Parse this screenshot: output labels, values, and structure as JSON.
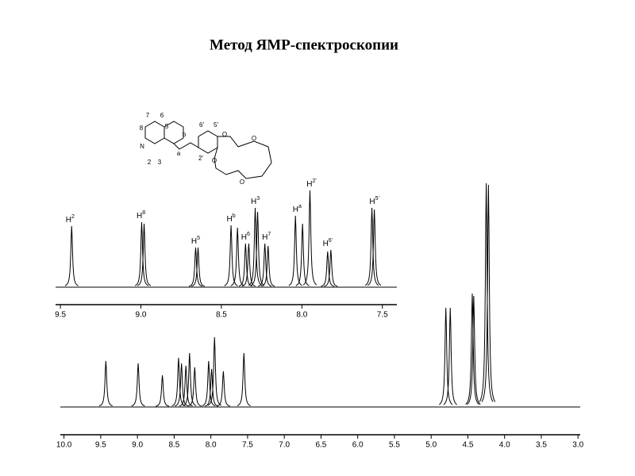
{
  "title": "Метод ЯМР-спектроскопии",
  "structure_labels": [
    "7",
    "6",
    "8",
    "5",
    "N",
    "2",
    "3",
    "b",
    "a",
    "6'",
    "5'",
    "2'",
    "O",
    "O",
    "O",
    "O"
  ],
  "chart_data": [
    {
      "type": "spectrum",
      "x": [
        9.43,
        8.995,
        8.98,
        8.66,
        8.645,
        8.44,
        8.4,
        8.35,
        8.33,
        8.29,
        8.275,
        8.23,
        8.21,
        8.04,
        7.996,
        7.95,
        7.84,
        7.82,
        7.565,
        7.55
      ],
      "values": [
        77,
        82,
        80,
        50,
        50,
        78,
        75,
        55,
        55,
        100,
        95,
        55,
        52,
        90,
        80,
        122,
        45,
        47,
        100,
        98
      ],
      "color": "#000000",
      "xlim": [
        9.53,
        7.41
      ],
      "xticks": [
        {
          "value": 9.5,
          "label": "9.5"
        },
        {
          "value": 9,
          "label": "9.0"
        },
        {
          "value": 8.5,
          "label": "8.5"
        },
        {
          "value": 8,
          "label": "8.0"
        },
        {
          "value": 7.5,
          "label": "7.5"
        }
      ],
      "annotations": [
        {
          "text": "H",
          "sup": "2",
          "x": 9.43
        },
        {
          "text": "H",
          "sup": "8",
          "x": 8.99
        },
        {
          "text": "H",
          "sup": "5",
          "x": 8.65
        },
        {
          "text": "H",
          "sup": "b",
          "x": 8.43
        },
        {
          "text": "H",
          "sup": "6",
          "x": 8.34
        },
        {
          "text": "H",
          "sup": "3",
          "x": 8.28
        },
        {
          "text": "H",
          "sup": "7",
          "x": 8.21
        },
        {
          "text": "H",
          "sup": "a",
          "x": 8.02
        },
        {
          "text": "H",
          "sup": "2'",
          "x": 7.93
        },
        {
          "text": "H",
          "sup": "6'",
          "x": 7.83
        },
        {
          "text": "H",
          "sup": "5'",
          "x": 7.54
        }
      ]
    },
    {
      "type": "spectrum",
      "x": [
        9.43,
        8.99,
        8.66,
        8.44,
        8.4,
        8.34,
        8.29,
        8.22,
        8.03,
        7.99,
        7.95,
        7.83,
        7.55,
        4.8,
        4.74,
        4.44,
        4.42,
        4.25,
        4.22
      ],
      "values": [
        58,
        55,
        40,
        62,
        55,
        52,
        68,
        50,
        58,
        48,
        88,
        45,
        68,
        125,
        125,
        143,
        140,
        282,
        280
      ],
      "color": "#000000",
      "xlim": [
        10.05,
        2.97
      ],
      "xticks": [
        {
          "value": 10,
          "label": "10.0"
        },
        9.5,
        {
          "value": 9,
          "label": "9.0"
        },
        8.5,
        {
          "value": 8,
          "label": "8.0"
        },
        7.5,
        {
          "value": 7,
          "label": "7.0"
        },
        6.5,
        {
          "value": 6,
          "label": "6.0"
        },
        5.5,
        {
          "value": 5,
          "label": "5.0"
        },
        4.5,
        {
          "value": 4,
          "label": "4.0"
        },
        3.5,
        {
          "value": 3,
          "label": "3.0"
        }
      ]
    }
  ]
}
